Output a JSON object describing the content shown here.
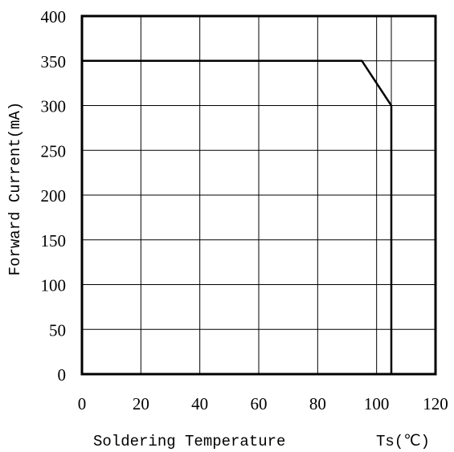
{
  "chart_data": {
    "type": "line",
    "xlabel": "Soldering Temperature",
    "xunit": "Ts(℃)",
    "ylabel": "Forward Current(mA)",
    "xlim": [
      0,
      120
    ],
    "ylim": [
      0,
      400
    ],
    "xticks": [
      0,
      20,
      40,
      60,
      80,
      100,
      120
    ],
    "yticks": [
      0,
      50,
      100,
      150,
      200,
      250,
      300,
      350,
      400
    ],
    "extra_vertical_gridline": 105,
    "grid": true,
    "series": [
      {
        "x": [
          0,
          95,
          105,
          105
        ],
        "y": [
          350,
          350,
          300,
          0
        ]
      }
    ]
  }
}
